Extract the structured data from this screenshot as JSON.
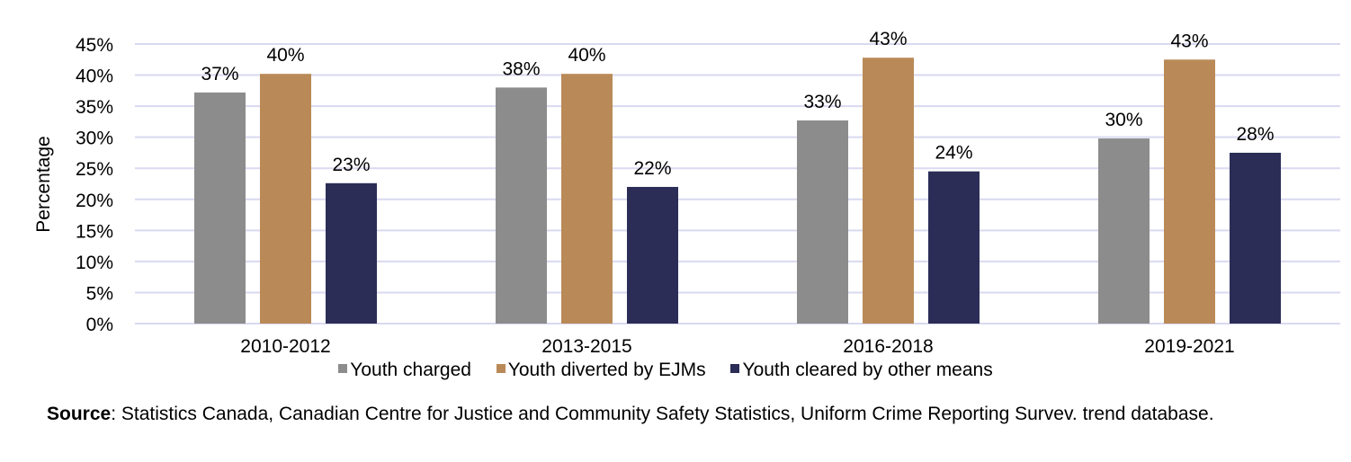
{
  "chart_data": {
    "type": "bar",
    "title": "",
    "xlabel": "",
    "ylabel": "Percentage",
    "ylim": [
      0,
      45
    ],
    "yticks": [
      "0%",
      "5%",
      "10%",
      "15%",
      "20%",
      "25%",
      "30%",
      "35%",
      "40%",
      "45%"
    ],
    "grid": true,
    "legend_position": "bottom",
    "categories": [
      "2010-2012",
      "2013-2015",
      "2016-2018",
      "2019-2021"
    ],
    "series": [
      {
        "name": "Youth charged",
        "color": "#8c8c8c",
        "values": [
          37.2,
          38.0,
          32.7,
          29.8
        ],
        "labels": [
          "37%",
          "38%",
          "33%",
          "30%"
        ]
      },
      {
        "name": "Youth diverted by EJMs",
        "color": "#b98a57",
        "values": [
          40.2,
          40.2,
          42.8,
          42.5
        ],
        "labels": [
          "40%",
          "40%",
          "43%",
          "43%"
        ]
      },
      {
        "name": "Youth cleared by other means",
        "color": "#2b2d57",
        "values": [
          22.6,
          22.0,
          24.5,
          27.5
        ],
        "labels": [
          "23%",
          "22%",
          "24%",
          "28%"
        ]
      }
    ]
  },
  "source": {
    "label": "Source",
    "text": ": Statistics Canada, Canadian Centre for Justice and Community Safety Statistics, Uniform Crime Reporting Survev. trend database."
  }
}
